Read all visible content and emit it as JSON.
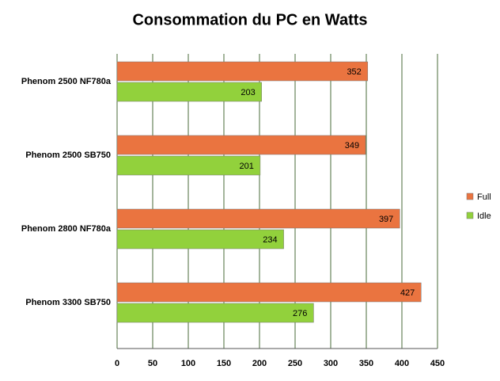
{
  "chart_data": {
    "type": "hbar",
    "title": "Consommation du PC en Watts",
    "categories": [
      "Phenom 2500 NF780a",
      "Phenom 2500 SB750",
      "Phenom 2800 NF780a",
      "Phenom 3300 SB750"
    ],
    "series": [
      {
        "name": "Full",
        "color": "#ea7440",
        "values": [
          352,
          349,
          397,
          427
        ]
      },
      {
        "name": "Idle",
        "color": "#92d13c",
        "values": [
          203,
          201,
          234,
          276
        ]
      }
    ],
    "xlim": [
      0,
      450
    ],
    "xticks": [
      0,
      50,
      100,
      150,
      200,
      250,
      300,
      350,
      400,
      450
    ],
    "grid": true,
    "legend": "right"
  }
}
